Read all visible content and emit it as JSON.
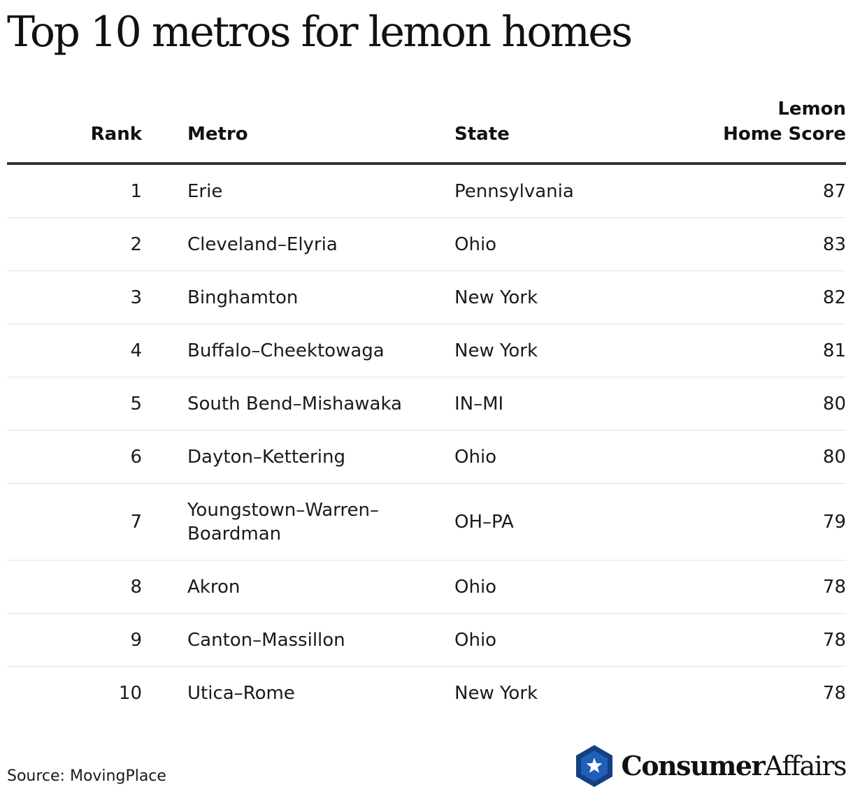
{
  "chart_data": {
    "type": "table",
    "title": "Top 10 metros for lemon homes",
    "columns": {
      "rank": "Rank",
      "metro": "Metro",
      "state": "State",
      "score_line1": "Lemon",
      "score_line2": "Home Score"
    },
    "rows": [
      {
        "rank": "1",
        "metro": "Erie",
        "state": "Pennsylvania",
        "score": "87"
      },
      {
        "rank": "2",
        "metro": "Cleveland–Elyria",
        "state": "Ohio",
        "score": "83"
      },
      {
        "rank": "3",
        "metro": "Binghamton",
        "state": "New York",
        "score": "82"
      },
      {
        "rank": "4",
        "metro": "Buffalo–Cheektowaga",
        "state": "New York",
        "score": "81"
      },
      {
        "rank": "5",
        "metro": "South Bend–Mishawaka",
        "state": "IN–MI",
        "score": "80"
      },
      {
        "rank": "6",
        "metro": "Dayton–Kettering",
        "state": "Ohio",
        "score": "80"
      },
      {
        "rank": "7",
        "metro": "Youngstown–Warren–Boardman",
        "state": "OH–PA",
        "score": "79"
      },
      {
        "rank": "8",
        "metro": "Akron",
        "state": "Ohio",
        "score": "78"
      },
      {
        "rank": "9",
        "metro": "Canton–Massillon",
        "state": "Ohio",
        "score": "78"
      },
      {
        "rank": "10",
        "metro": "Utica–Rome",
        "state": "New York",
        "score": "78"
      }
    ],
    "source": "Source: MovingPlace"
  },
  "brand": {
    "name_bold": "Consumer",
    "name_regular": "Affairs",
    "icon": "star-shield-icon",
    "color_primary": "#1f5fb8",
    "color_dark": "#143f82"
  }
}
